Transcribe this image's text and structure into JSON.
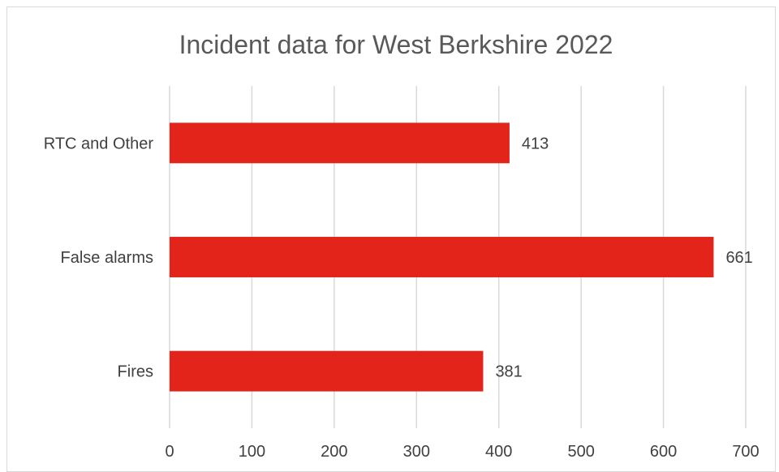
{
  "chart_data": {
    "type": "bar",
    "orientation": "horizontal",
    "title": "Incident data for West Berkshire 2022",
    "xlabel": "",
    "ylabel": "",
    "categories": [
      "RTC and Other",
      "False alarms",
      "Fires"
    ],
    "values": [
      413,
      661,
      381
    ],
    "xlim": [
      0,
      700
    ],
    "ticks": [
      0,
      100,
      200,
      300,
      400,
      500,
      600,
      700
    ],
    "tick_labels": [
      "0",
      "100",
      "200",
      "300",
      "400",
      "500",
      "600",
      "700"
    ],
    "data_labels": [
      "413",
      "661",
      "381"
    ],
    "grid": true,
    "legend": "none",
    "bar_color": "#e3241b",
    "grid_color": "#d9d9d9",
    "text_color": "#404040"
  }
}
